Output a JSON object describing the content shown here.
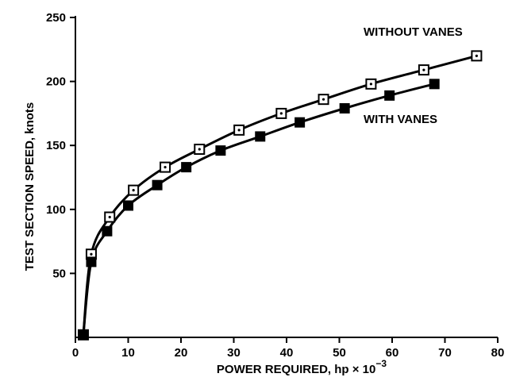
{
  "chart_data": {
    "type": "line",
    "xlabel": "POWER REQUIRED, hp × 10",
    "xlabel_sup": "−3",
    "ylabel": "TEST SECTION SPEED, knots",
    "xlim": [
      0,
      80
    ],
    "ylim": [
      0,
      250
    ],
    "x_ticks": [
      0,
      10,
      20,
      30,
      40,
      50,
      60,
      70,
      80
    ],
    "y_ticks": [
      50,
      100,
      150,
      200,
      250
    ],
    "grid": false,
    "series": [
      {
        "name": "WITHOUT VANES",
        "marker": "open-square-with-dot",
        "x": [
          1.5,
          3,
          6.5,
          11,
          17,
          23.5,
          31,
          39,
          47,
          56,
          66,
          76
        ],
        "y": [
          2,
          65,
          94,
          115,
          133,
          147,
          162,
          175,
          186,
          198,
          209,
          220
        ]
      },
      {
        "name": "WITH VANES",
        "marker": "filled-square",
        "x": [
          1.5,
          3,
          6,
          10,
          15.5,
          21,
          27.5,
          35,
          42.5,
          51,
          59.5,
          68
        ],
        "y": [
          2,
          59,
          83,
          103,
          119,
          133,
          146,
          157,
          168,
          179,
          189,
          198
        ]
      }
    ]
  }
}
